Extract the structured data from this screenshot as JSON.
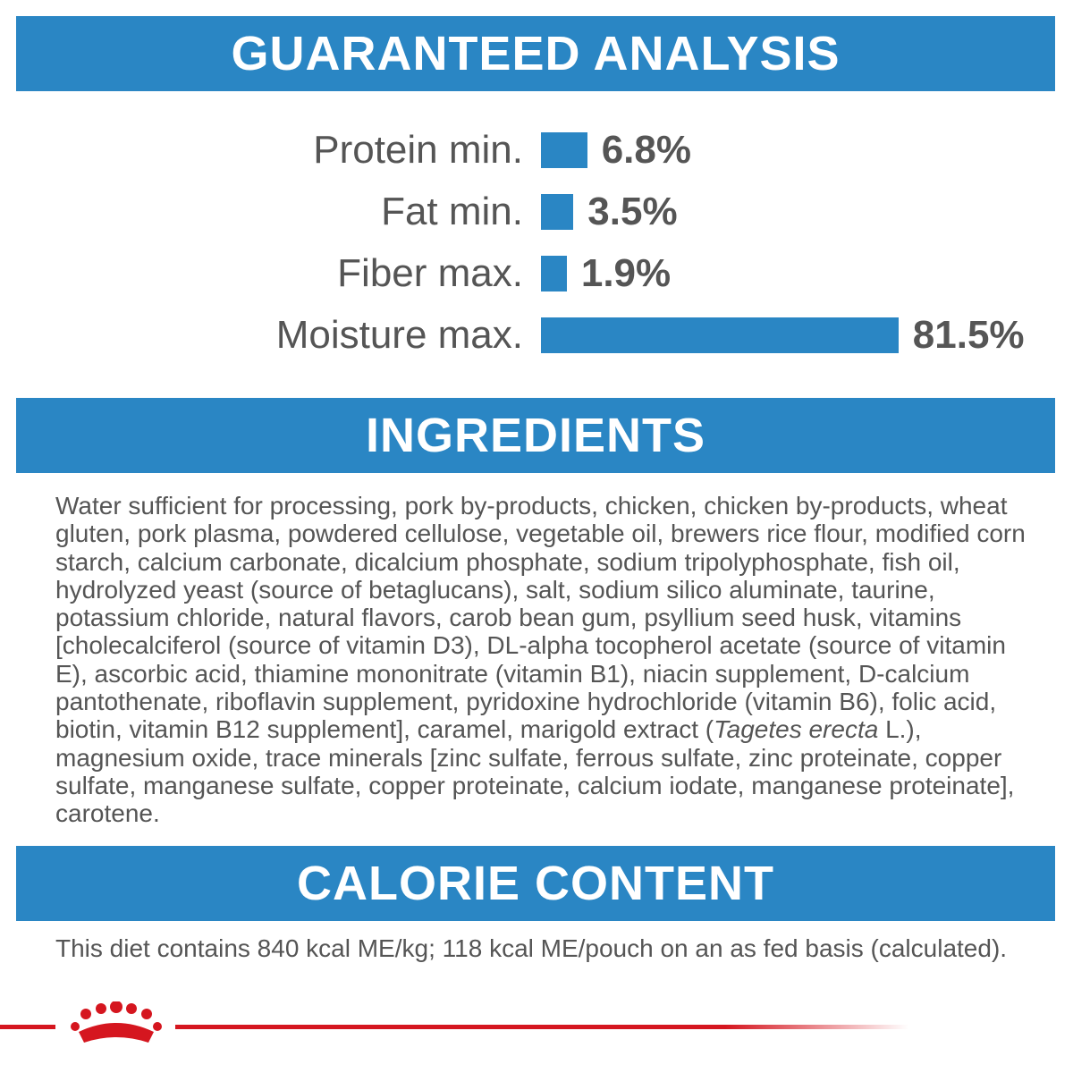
{
  "analysis": {
    "title": "GUARANTEED ANALYSIS",
    "labels": [
      "Protein min.",
      "Fat min.",
      "Fiber max.",
      "Moisture max."
    ],
    "values": [
      6.8,
      3.5,
      1.9,
      81.5
    ],
    "value_labels": [
      "6.8%",
      "3.5%",
      "1.9%",
      "81.5%"
    ],
    "color": "#2a86c4"
  },
  "ingredients": {
    "title": "INGREDIENTS",
    "text_before": "Water sufficient for processing, pork by-products, chicken, chicken by-products, wheat gluten, pork plasma, powdered cellulose, vegetable oil, brewers rice flour, modified corn starch, calcium carbonate, dicalcium phosphate, sodium tripolyphosphate, fish oil, hydrolyzed yeast (source of betaglucans), salt, sodium silico aluminate, taurine, potassium chloride, natural flavors, carob bean gum, psyllium seed husk, vitamins [cholecalciferol (source of vitamin D3), DL-alpha tocopherol acetate (source of vitamin E), ascorbic acid, thiamine mononitrate (vitamin B1), niacin supplement, D-calcium pantothenate, riboflavin supplement, pyridoxine hydrochloride (vitamin B6), folic acid, biotin, vitamin B12 supplement], caramel, marigold extract (",
    "text_italic": "Tagetes erecta",
    "text_after": " L.), magnesium oxide, trace minerals [zinc sulfate, ferrous sulfate, zinc proteinate, copper sulfate, manganese sulfate, copper proteinate, calcium iodate, manganese proteinate], carotene."
  },
  "calorie": {
    "title": "CALORIE CONTENT",
    "text": "This diet contains 840 kcal ME/kg; 118 kcal ME/pouch on an as fed basis (calculated)."
  }
}
